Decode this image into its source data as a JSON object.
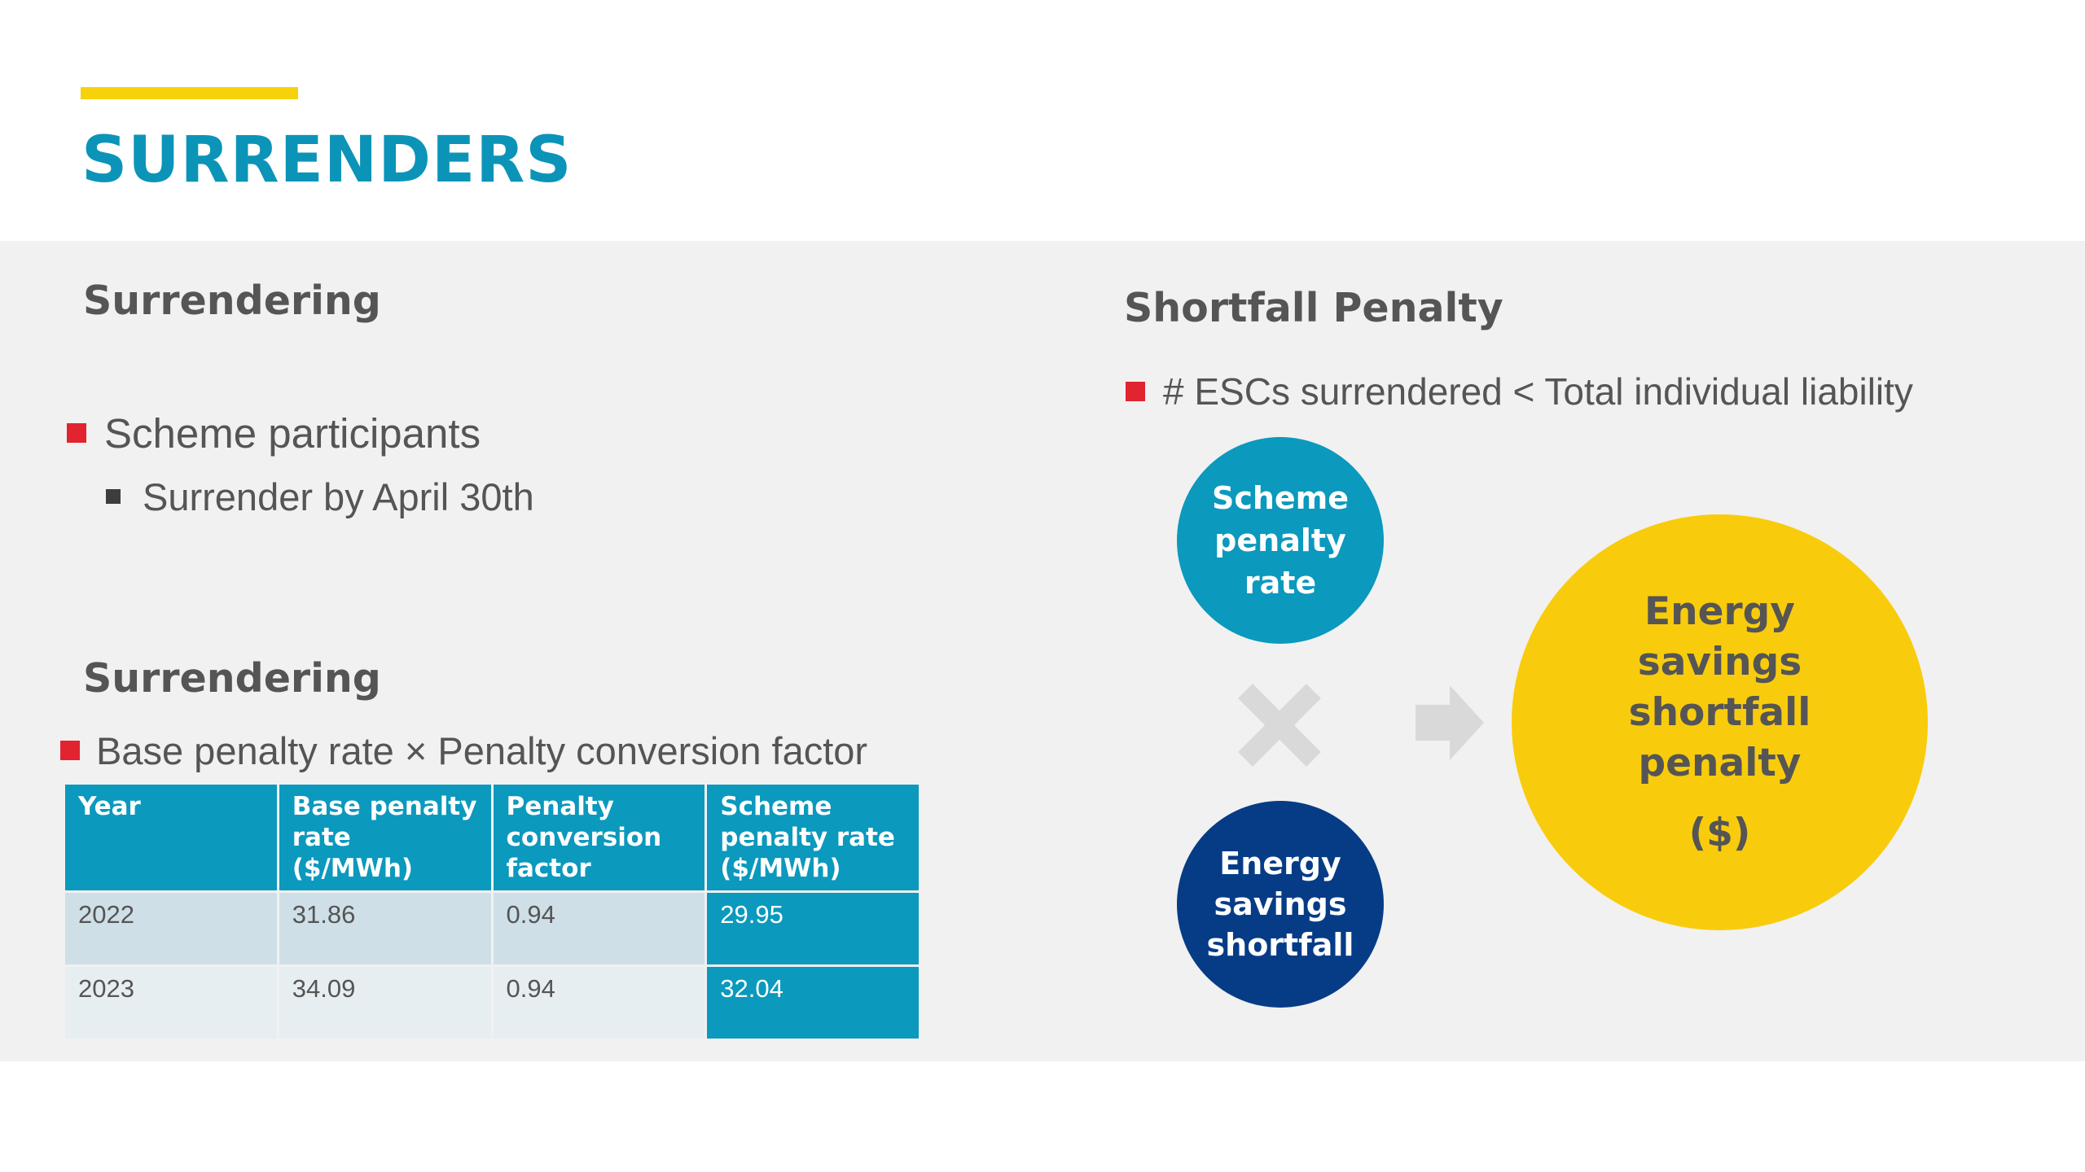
{
  "header": {
    "title": "SURRENDERS"
  },
  "left": {
    "section1": {
      "heading": "Surrendering",
      "bullet": "Scheme participants",
      "sub_bullet": "Surrender by April 30th"
    },
    "section2": {
      "heading": "Surrendering",
      "bullet": "Base penalty rate × Penalty conversion factor"
    },
    "table": {
      "columns": [
        "Year",
        "Base penalty rate ($/MWh)",
        "Penalty conversion factor",
        "Scheme penalty rate ($/MWh)"
      ],
      "rows": [
        [
          "2022",
          "31.86",
          "0.94",
          "29.95"
        ],
        [
          "2023",
          "34.09",
          "0.94",
          "32.04"
        ]
      ]
    }
  },
  "right": {
    "heading": "Shortfall Penalty",
    "bullet": "# ESCs surrendered < Total individual liability",
    "diagram": {
      "circle_rate": [
        "Scheme",
        "penalty",
        "rate"
      ],
      "circle_shortfall": [
        "Energy",
        "savings",
        "shortfall"
      ],
      "circle_penalty": [
        "Energy",
        "savings",
        "shortfall",
        "penalty"
      ],
      "circle_penalty_unit": "($)",
      "operator_icon": "multiply-icon",
      "result_icon": "arrow-right-icon"
    }
  },
  "colors": {
    "accent_yellow": "#f6d20a",
    "title_teal": "#0b94b8",
    "panel_gray": "#f1f1f1",
    "bullet_red": "#e1242f",
    "table_teal": "#0b99bd",
    "navy": "#063c86",
    "penalty_yellow": "#f8cc0c",
    "icon_gray": "#d9d9d9"
  }
}
